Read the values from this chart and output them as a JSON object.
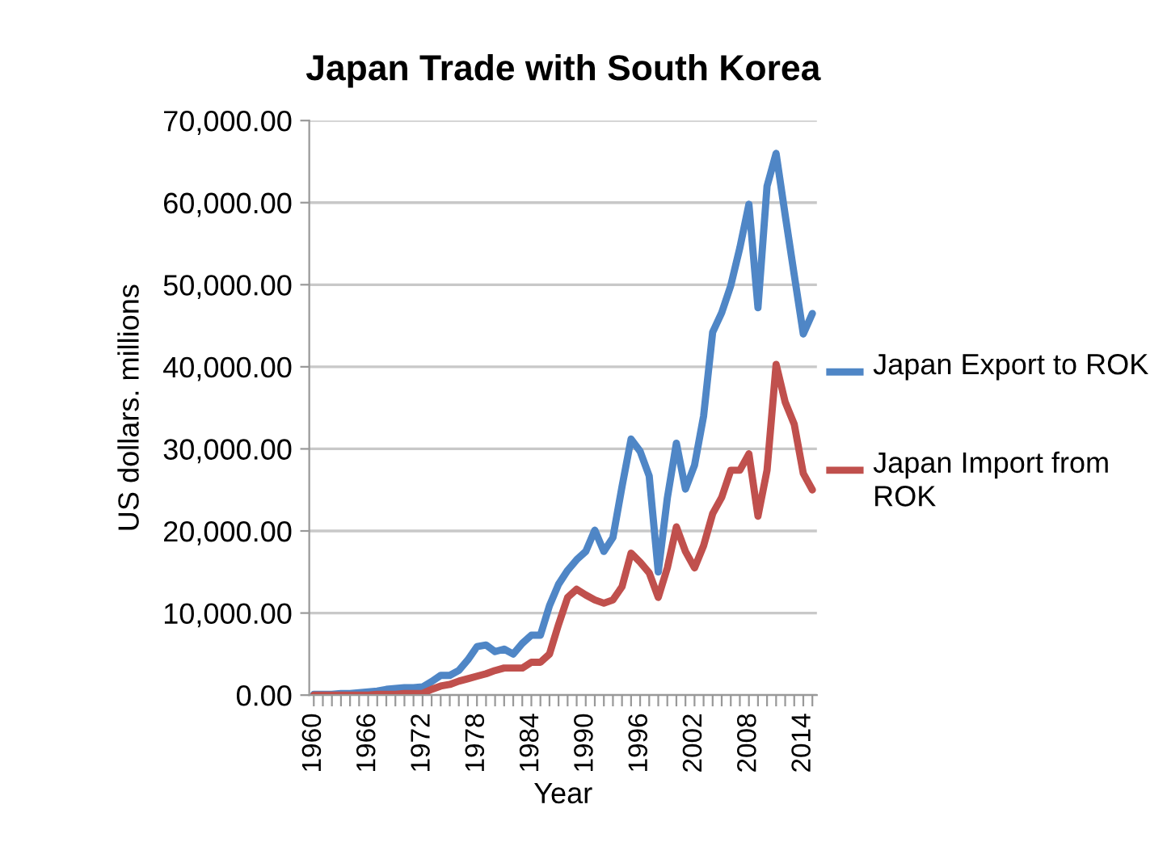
{
  "chart_data": {
    "type": "line",
    "title": "Japan Trade with South Korea",
    "xlabel": "Year",
    "ylabel": "US dollars. millions",
    "categories": [
      "1960",
      null,
      null,
      null,
      null,
      null,
      "1966",
      null,
      null,
      null,
      null,
      null,
      "1972",
      null,
      null,
      null,
      null,
      null,
      "1978",
      null,
      null,
      null,
      null,
      null,
      "1984",
      null,
      null,
      null,
      null,
      null,
      "1990",
      null,
      null,
      null,
      null,
      null,
      "1996",
      null,
      null,
      null,
      null,
      null,
      "2002",
      null,
      null,
      null,
      null,
      null,
      "2008",
      null,
      null,
      null,
      null,
      null,
      "2014",
      null
    ],
    "series": [
      {
        "name": "Japan Export to ROK",
        "color": "#4f86c6",
        "values": [
          100,
          100,
          100,
          200,
          200,
          300,
          400,
          500,
          700,
          800,
          900,
          900,
          1000,
          1650,
          2400,
          2400,
          3000,
          4300,
          5900,
          6100,
          5300,
          5600,
          5000,
          6300,
          7300,
          7300,
          10900,
          13500,
          15200,
          16500,
          17500,
          20100,
          17500,
          19200,
          25400,
          31200,
          29700,
          26700,
          15000,
          24000,
          30700,
          25100,
          28000,
          34000,
          44200,
          46600,
          49900,
          54500,
          59800,
          47200,
          62000,
          66000,
          58500,
          51200,
          44000,
          46500
        ]
      },
      {
        "name": "Japan Import from ROK",
        "color": "#c0504d",
        "values": [
          0,
          0,
          0,
          0,
          0,
          0,
          0,
          100,
          100,
          100,
          200,
          200,
          200,
          700,
          1100,
          1300,
          1700,
          2000,
          2300,
          2600,
          3000,
          3300,
          3300,
          3300,
          4000,
          4000,
          5000,
          8600,
          11900,
          12900,
          12200,
          11600,
          11200,
          11600,
          13200,
          17300,
          16200,
          14900,
          11900,
          15500,
          20500,
          17500,
          15500,
          18200,
          22100,
          24100,
          27400,
          27400,
          29400,
          21800,
          27400,
          40300,
          35700,
          33000,
          27000,
          25000
        ]
      }
    ],
    "ylim": [
      0,
      70000
    ],
    "yticks": [
      {
        "value": 0,
        "label": "0.00"
      },
      {
        "value": 10000,
        "label": "10,000.00"
      },
      {
        "value": 20000,
        "label": "20,000.00"
      },
      {
        "value": 30000,
        "label": "30,000.00"
      },
      {
        "value": 40000,
        "label": "40,000.00"
      },
      {
        "value": 50000,
        "label": "50,000.00"
      },
      {
        "value": 60000,
        "label": "60,000.00"
      },
      {
        "value": 70000,
        "label": "70,000.00"
      }
    ],
    "grid": "y",
    "legend": "right",
    "line_style": "solid",
    "marker": "none"
  }
}
